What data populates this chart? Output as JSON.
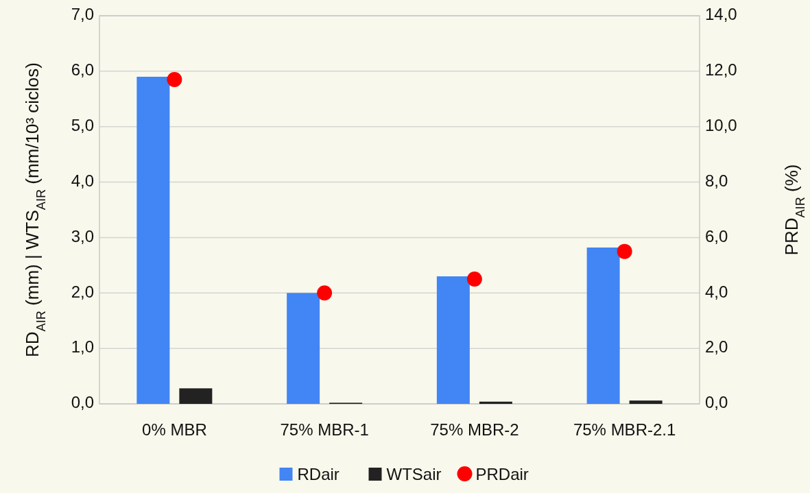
{
  "chart_data": {
    "type": "bar",
    "categories": [
      "0% MBR",
      "75% MBR-1",
      "75% MBR-2",
      "75% MBR-2.1"
    ],
    "ylabel": "RD$_{AIR}$ (mm) | WTS$_{AIR}$ (mm/10³ ciclos)",
    "y2label": "PRD$_{AIR}$ (%)",
    "series": [
      {
        "name": "RDair",
        "color": "#4285f4",
        "values": [
          5.9,
          2.0,
          2.3,
          2.82
        ]
      },
      {
        "name": "WTSair",
        "color": "#222222",
        "values": [
          0.28,
          0.02,
          0.04,
          0.06
        ]
      },
      {
        "name": "PRDair",
        "type": "scatter",
        "axis": "y2",
        "color": "#ff0000",
        "values": [
          11.7,
          4.0,
          4.5,
          5.5
        ]
      }
    ],
    "ylim": [
      0,
      7
    ],
    "yticks": [
      {
        "value": 0,
        "label": "0,0"
      },
      {
        "value": 1,
        "label": "1,0"
      },
      {
        "value": 2,
        "label": "2,0"
      },
      {
        "value": 3,
        "label": "3,0"
      },
      {
        "value": 4,
        "label": "4,0"
      },
      {
        "value": 5,
        "label": "5,0"
      },
      {
        "value": 6,
        "label": "6,0"
      },
      {
        "value": 7,
        "label": "7,0"
      }
    ],
    "y2lim": [
      0,
      14
    ],
    "y2ticks": [
      {
        "value": 0,
        "label": "0,0"
      },
      {
        "value": 2,
        "label": "2,0"
      },
      {
        "value": 4,
        "label": "4,0"
      },
      {
        "value": 6,
        "label": "6,0"
      },
      {
        "value": 8,
        "label": "8,0"
      },
      {
        "value": 10,
        "label": "10,0"
      },
      {
        "value": 12,
        "label": "12,0"
      },
      {
        "value": 14,
        "label": "14,0"
      }
    ],
    "grid": "y",
    "legend": "bottom",
    "marker": "circle"
  }
}
